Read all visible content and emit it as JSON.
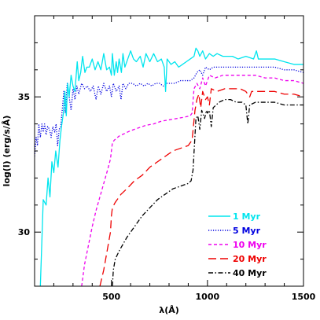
{
  "chart_data": {
    "type": "line",
    "xlabel": "λ(Å)",
    "ylabel": "log(l)  (erg/s/Å)",
    "xlim": [
      100,
      1500
    ],
    "ylim": [
      28,
      38
    ],
    "x_ticks": [
      500,
      1000,
      1500
    ],
    "y_ticks": [
      30,
      35
    ],
    "x_tick_labels": [
      "500",
      "1000",
      "1500"
    ],
    "y_tick_labels": [
      "30",
      "35"
    ],
    "grid": false,
    "legend_position": "bottom-right",
    "series": [
      {
        "name": "1 Myr",
        "color": "#00e5ee",
        "dash": "solid",
        "points": [
          [
            130,
            28.0
          ],
          [
            145,
            31.2
          ],
          [
            160,
            31.0
          ],
          [
            170,
            32.0
          ],
          [
            180,
            31.3
          ],
          [
            190,
            32.6
          ],
          [
            200,
            32.2
          ],
          [
            210,
            33.0
          ],
          [
            222,
            32.4
          ],
          [
            232,
            33.4
          ],
          [
            240,
            33.9
          ],
          [
            250,
            34.4
          ],
          [
            258,
            35.2
          ],
          [
            265,
            34.3
          ],
          [
            272,
            35.5
          ],
          [
            280,
            35.0
          ],
          [
            290,
            35.8
          ],
          [
            300,
            35.4
          ],
          [
            310,
            35.2
          ],
          [
            322,
            36.3
          ],
          [
            330,
            35.6
          ],
          [
            340,
            35.9
          ],
          [
            350,
            36.5
          ],
          [
            362,
            35.9
          ],
          [
            372,
            36.1
          ],
          [
            385,
            36.1
          ],
          [
            400,
            36.4
          ],
          [
            415,
            36.0
          ],
          [
            430,
            36.3
          ],
          [
            445,
            36.0
          ],
          [
            460,
            36.6
          ],
          [
            475,
            36.0
          ],
          [
            490,
            36.1
          ],
          [
            500,
            35.8
          ],
          [
            505,
            36.6
          ],
          [
            515,
            35.8
          ],
          [
            525,
            36.3
          ],
          [
            532,
            35.9
          ],
          [
            540,
            36.4
          ],
          [
            552,
            35.9
          ],
          [
            560,
            36.6
          ],
          [
            570,
            36.1
          ],
          [
            585,
            36.4
          ],
          [
            600,
            36.7
          ],
          [
            615,
            36.4
          ],
          [
            630,
            36.3
          ],
          [
            650,
            36.5
          ],
          [
            665,
            36.1
          ],
          [
            680,
            36.6
          ],
          [
            700,
            36.3
          ],
          [
            720,
            36.6
          ],
          [
            740,
            36.3
          ],
          [
            760,
            36.4
          ],
          [
            775,
            36.1
          ],
          [
            782,
            35.2
          ],
          [
            790,
            36.4
          ],
          [
            810,
            36.2
          ],
          [
            830,
            36.3
          ],
          [
            850,
            36.1
          ],
          [
            870,
            36.2
          ],
          [
            890,
            36.3
          ],
          [
            910,
            36.4
          ],
          [
            930,
            36.5
          ],
          [
            940,
            36.8
          ],
          [
            950,
            36.7
          ],
          [
            960,
            36.5
          ],
          [
            975,
            36.7
          ],
          [
            990,
            36.4
          ],
          [
            1010,
            36.6
          ],
          [
            1030,
            36.5
          ],
          [
            1050,
            36.6
          ],
          [
            1080,
            36.5
          ],
          [
            1100,
            36.5
          ],
          [
            1130,
            36.5
          ],
          [
            1160,
            36.4
          ],
          [
            1200,
            36.5
          ],
          [
            1240,
            36.4
          ],
          [
            1255,
            36.7
          ],
          [
            1265,
            36.4
          ],
          [
            1300,
            36.4
          ],
          [
            1350,
            36.4
          ],
          [
            1400,
            36.3
          ],
          [
            1450,
            36.2
          ],
          [
            1500,
            36.2
          ]
        ]
      },
      {
        "name": "5 Myr",
        "color": "#0000e0",
        "dash": "dotted",
        "points": [
          [
            100,
            32.8
          ],
          [
            108,
            33.5
          ],
          [
            115,
            33.2
          ],
          [
            122,
            34.0
          ],
          [
            130,
            33.5
          ],
          [
            138,
            34.0
          ],
          [
            145,
            33.7
          ],
          [
            152,
            34.0
          ],
          [
            160,
            33.6
          ],
          [
            168,
            33.9
          ],
          [
            178,
            33.8
          ],
          [
            186,
            33.5
          ],
          [
            195,
            33.9
          ],
          [
            205,
            33.7
          ],
          [
            212,
            34.0
          ],
          [
            220,
            33.2
          ],
          [
            228,
            33.8
          ],
          [
            236,
            33.9
          ],
          [
            245,
            34.6
          ],
          [
            252,
            35.2
          ],
          [
            260,
            34.4
          ],
          [
            270,
            35.5
          ],
          [
            280,
            35.0
          ],
          [
            290,
            34.5
          ],
          [
            300,
            35.3
          ],
          [
            310,
            34.9
          ],
          [
            320,
            35.4
          ],
          [
            330,
            35.1
          ],
          [
            345,
            35.5
          ],
          [
            360,
            35.3
          ],
          [
            375,
            35.4
          ],
          [
            390,
            35.2
          ],
          [
            405,
            35.4
          ],
          [
            420,
            34.9
          ],
          [
            432,
            35.4
          ],
          [
            445,
            35.1
          ],
          [
            460,
            35.5
          ],
          [
            475,
            35.2
          ],
          [
            490,
            35.4
          ],
          [
            500,
            35.0
          ],
          [
            510,
            35.5
          ],
          [
            525,
            35.2
          ],
          [
            540,
            35.4
          ],
          [
            550,
            34.9
          ],
          [
            560,
            35.5
          ],
          [
            575,
            35.3
          ],
          [
            590,
            35.5
          ],
          [
            610,
            35.5
          ],
          [
            630,
            35.4
          ],
          [
            650,
            35.5
          ],
          [
            670,
            35.4
          ],
          [
            690,
            35.5
          ],
          [
            710,
            35.4
          ],
          [
            730,
            35.5
          ],
          [
            750,
            35.5
          ],
          [
            770,
            35.4
          ],
          [
            785,
            35.5
          ],
          [
            800,
            35.5
          ],
          [
            830,
            35.5
          ],
          [
            860,
            35.6
          ],
          [
            890,
            35.6
          ],
          [
            910,
            35.6
          ],
          [
            930,
            35.7
          ],
          [
            945,
            35.9
          ],
          [
            960,
            36.0
          ],
          [
            975,
            35.8
          ],
          [
            990,
            36.1
          ],
          [
            1010,
            36.0
          ],
          [
            1030,
            36.1
          ],
          [
            1060,
            36.1
          ],
          [
            1090,
            36.1
          ],
          [
            1120,
            36.1
          ],
          [
            1160,
            36.1
          ],
          [
            1200,
            36.1
          ],
          [
            1250,
            36.1
          ],
          [
            1300,
            36.1
          ],
          [
            1350,
            36.1
          ],
          [
            1400,
            36.0
          ],
          [
            1450,
            36.0
          ],
          [
            1500,
            35.9
          ]
        ]
      },
      {
        "name": "10 Myr",
        "color": "#ee00ee",
        "dash": "short-dash",
        "points": [
          [
            345,
            28.0
          ],
          [
            360,
            28.8
          ],
          [
            380,
            29.5
          ],
          [
            400,
            30.2
          ],
          [
            420,
            30.8
          ],
          [
            440,
            31.3
          ],
          [
            460,
            31.8
          ],
          [
            480,
            32.3
          ],
          [
            495,
            32.7
          ],
          [
            500,
            33.0
          ],
          [
            505,
            33.3
          ],
          [
            515,
            33.4
          ],
          [
            540,
            33.55
          ],
          [
            570,
            33.65
          ],
          [
            600,
            33.75
          ],
          [
            640,
            33.85
          ],
          [
            680,
            33.95
          ],
          [
            720,
            34.0
          ],
          [
            760,
            34.1
          ],
          [
            800,
            34.15
          ],
          [
            840,
            34.2
          ],
          [
            880,
            34.25
          ],
          [
            910,
            34.3
          ],
          [
            920,
            34.4
          ],
          [
            930,
            35.3
          ],
          [
            945,
            35.5
          ],
          [
            960,
            35.3
          ],
          [
            975,
            35.7
          ],
          [
            990,
            35.4
          ],
          [
            1010,
            35.8
          ],
          [
            1040,
            35.7
          ],
          [
            1080,
            35.8
          ],
          [
            1120,
            35.8
          ],
          [
            1160,
            35.8
          ],
          [
            1200,
            35.8
          ],
          [
            1250,
            35.8
          ],
          [
            1300,
            35.7
          ],
          [
            1350,
            35.7
          ],
          [
            1400,
            35.6
          ],
          [
            1450,
            35.6
          ],
          [
            1500,
            35.5
          ]
        ]
      },
      {
        "name": "20 Myr",
        "color": "#ee0000",
        "dash": "long-dash",
        "points": [
          [
            440,
            28.0
          ],
          [
            460,
            28.6
          ],
          [
            480,
            29.4
          ],
          [
            495,
            30.0
          ],
          [
            500,
            30.6
          ],
          [
            505,
            30.9
          ],
          [
            520,
            31.1
          ],
          [
            550,
            31.4
          ],
          [
            580,
            31.6
          ],
          [
            620,
            31.9
          ],
          [
            660,
            32.1
          ],
          [
            700,
            32.4
          ],
          [
            740,
            32.6
          ],
          [
            780,
            32.8
          ],
          [
            820,
            33.0
          ],
          [
            860,
            33.1
          ],
          [
            900,
            33.2
          ],
          [
            920,
            33.4
          ],
          [
            935,
            34.5
          ],
          [
            945,
            34.9
          ],
          [
            955,
            35.1
          ],
          [
            965,
            34.6
          ],
          [
            975,
            35.2
          ],
          [
            990,
            34.9
          ],
          [
            1000,
            35.0
          ],
          [
            1010,
            34.7
          ],
          [
            1020,
            35.3
          ],
          [
            1050,
            35.2
          ],
          [
            1090,
            35.3
          ],
          [
            1130,
            35.3
          ],
          [
            1170,
            35.3
          ],
          [
            1200,
            35.2
          ],
          [
            1220,
            35.0
          ],
          [
            1230,
            35.2
          ],
          [
            1260,
            35.2
          ],
          [
            1300,
            35.2
          ],
          [
            1350,
            35.2
          ],
          [
            1400,
            35.1
          ],
          [
            1450,
            35.1
          ],
          [
            1500,
            35.0
          ]
        ]
      },
      {
        "name": "40 Myr",
        "color": "#000000",
        "dash": "dash-dot",
        "points": [
          [
            505,
            28.0
          ],
          [
            510,
            28.6
          ],
          [
            520,
            29.0
          ],
          [
            540,
            29.3
          ],
          [
            580,
            29.8
          ],
          [
            620,
            30.2
          ],
          [
            660,
            30.6
          ],
          [
            700,
            30.9
          ],
          [
            740,
            31.2
          ],
          [
            780,
            31.4
          ],
          [
            820,
            31.6
          ],
          [
            860,
            31.7
          ],
          [
            900,
            31.8
          ],
          [
            915,
            31.9
          ],
          [
            925,
            32.3
          ],
          [
            940,
            34.2
          ],
          [
            950,
            34.3
          ],
          [
            960,
            33.8
          ],
          [
            970,
            34.5
          ],
          [
            985,
            34.2
          ],
          [
            995,
            34.5
          ],
          [
            1000,
            34.4
          ],
          [
            1010,
            34.5
          ],
          [
            1020,
            33.9
          ],
          [
            1030,
            34.6
          ],
          [
            1060,
            34.8
          ],
          [
            1090,
            34.9
          ],
          [
            1120,
            34.9
          ],
          [
            1150,
            34.8
          ],
          [
            1180,
            34.8
          ],
          [
            1200,
            34.7
          ],
          [
            1210,
            34.0
          ],
          [
            1220,
            34.7
          ],
          [
            1250,
            34.8
          ],
          [
            1300,
            34.8
          ],
          [
            1350,
            34.8
          ],
          [
            1400,
            34.7
          ],
          [
            1450,
            34.7
          ],
          [
            1500,
            34.7
          ]
        ]
      }
    ]
  }
}
